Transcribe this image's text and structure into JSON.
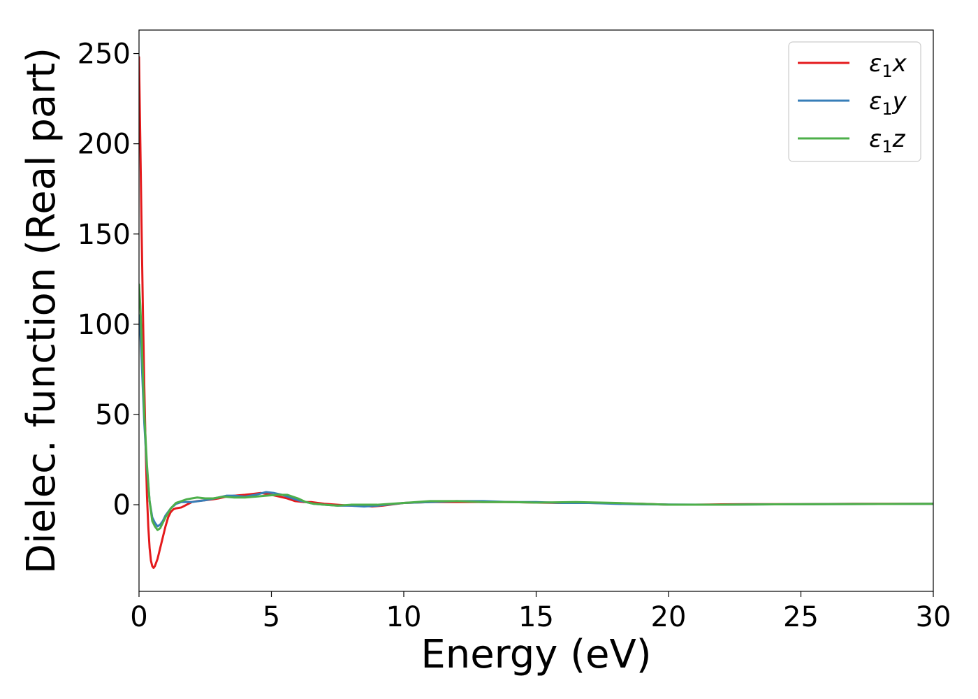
{
  "chart_data": {
    "type": "line",
    "title": "",
    "xlabel": "Energy (eV)",
    "ylabel": "Dielec. function (Real part)",
    "xlim": [
      0,
      30
    ],
    "ylim": [
      -48,
      263
    ],
    "xticks": [
      0,
      5,
      10,
      15,
      20,
      25,
      30
    ],
    "xtick_labels": [
      "0",
      "5",
      "10",
      "15",
      "20",
      "25",
      "30"
    ],
    "yticks": [
      0,
      50,
      100,
      150,
      200,
      250
    ],
    "ytick_labels": [
      "0",
      "50",
      "100",
      "150",
      "200",
      "250"
    ],
    "grid": false,
    "legend": "top-right",
    "series": [
      {
        "name": "ε₁x",
        "legend_main": "ε",
        "legend_sub": "1",
        "legend_suffix": "x",
        "color": "#e41a1c",
        "x": [
          0,
          0.05,
          0.1,
          0.15,
          0.2,
          0.25,
          0.3,
          0.35,
          0.4,
          0.45,
          0.5,
          0.55,
          0.6,
          0.7,
          0.8,
          0.9,
          1.0,
          1.1,
          1.2,
          1.3,
          1.4,
          1.6,
          1.8,
          2.0,
          2.2,
          2.5,
          2.8,
          3.0,
          3.3,
          3.6,
          4.0,
          4.3,
          4.6,
          4.8,
          5.0,
          5.3,
          5.6,
          5.9,
          6.2,
          6.5,
          7.0,
          7.5,
          8.0,
          8.5,
          8.8,
          9.2,
          10.0,
          11.0,
          12.0,
          13.0,
          14.0,
          15.0,
          16.0,
          17.0,
          18.0,
          19.0,
          20.0,
          21.0,
          22.0,
          23.0,
          24.0,
          25.0,
          26.0,
          27.0,
          28.0,
          29.0,
          30.0
        ],
        "y": [
          248,
          200,
          150,
          105,
          65,
          32,
          5,
          -12,
          -24,
          -31,
          -34,
          -35,
          -34,
          -30,
          -24,
          -18,
          -12,
          -7,
          -4,
          -2.5,
          -2,
          -1.5,
          0,
          1.5,
          2,
          2.5,
          3,
          3.5,
          4.5,
          5,
          5.5,
          6,
          6.5,
          6,
          5.5,
          4.5,
          3.5,
          2,
          1.5,
          1.5,
          0.5,
          0,
          -0.5,
          -0.5,
          -1,
          -0.5,
          1,
          1.5,
          1.5,
          1.5,
          1.5,
          1.2,
          1,
          1,
          0.8,
          0.5,
          0,
          0,
          0.2,
          0.3,
          0.3,
          0.3,
          0.4,
          0.5,
          0.5,
          0.5,
          0.5
        ]
      },
      {
        "name": "ε₁y",
        "legend_main": "ε",
        "legend_sub": "1",
        "legend_suffix": "y",
        "color": "#377eb8",
        "x": [
          0,
          0.05,
          0.1,
          0.15,
          0.2,
          0.3,
          0.4,
          0.5,
          0.6,
          0.7,
          0.8,
          0.9,
          1.0,
          1.2,
          1.4,
          1.6,
          2.0,
          2.5,
          3.0,
          3.3,
          3.6,
          4.0,
          4.4,
          4.8,
          5.1,
          5.4,
          5.7,
          6.0,
          6.3,
          6.6,
          7.0,
          7.5,
          8.0,
          8.5,
          9.0,
          10.0,
          11.0,
          12.0,
          13.0,
          14.0,
          15.0,
          16.0,
          17.0,
          18.0,
          19.0,
          20.0,
          22.0,
          24.0,
          26.0,
          28.0,
          30.0
        ],
        "y": [
          105,
          95,
          80,
          62,
          45,
          20,
          2,
          -7,
          -10,
          -12,
          -11,
          -9,
          -6,
          -2,
          0.5,
          1.5,
          1.5,
          2.5,
          4,
          5,
          5,
          4.5,
          5.5,
          7,
          6.5,
          5.5,
          4,
          2.5,
          1.5,
          0.5,
          0,
          -0.5,
          -0.5,
          -1,
          -0.5,
          1,
          1.5,
          2,
          2,
          1.5,
          1.5,
          1,
          1,
          0.5,
          0.2,
          0.1,
          0,
          0.2,
          0.3,
          0.4,
          0.5
        ]
      },
      {
        "name": "ε₁z",
        "legend_main": "ε",
        "legend_sub": "1",
        "legend_suffix": "z",
        "color": "#4daf4a",
        "x": [
          0,
          0.05,
          0.1,
          0.15,
          0.2,
          0.3,
          0.4,
          0.5,
          0.6,
          0.7,
          0.8,
          0.9,
          1.0,
          1.2,
          1.4,
          1.6,
          1.8,
          2.0,
          2.2,
          2.5,
          2.8,
          3.2,
          3.6,
          4.0,
          4.4,
          4.8,
          5.2,
          5.6,
          6.0,
          6.3,
          6.6,
          7.0,
          7.5,
          8.0,
          8.5,
          9.0,
          10.0,
          11.0,
          12.0,
          13.0,
          14.0,
          15.0,
          16.5,
          18.0,
          19.0,
          20.0,
          22.0,
          24.0,
          26.0,
          28.0,
          30.0
        ],
        "y": [
          122,
          110,
          92,
          70,
          50,
          22,
          2,
          -9,
          -12,
          -14,
          -13,
          -10,
          -7,
          -2,
          1,
          2,
          3,
          3.5,
          4,
          3.5,
          3.5,
          4.5,
          4,
          4,
          4.5,
          5,
          5.5,
          5.5,
          3.5,
          1.5,
          0.5,
          0,
          -0.5,
          0,
          0,
          0,
          1,
          2,
          2,
          1.5,
          1.5,
          1.2,
          1.5,
          1,
          0.5,
          0,
          0,
          0.2,
          0.3,
          0.4,
          0.5
        ]
      }
    ]
  }
}
